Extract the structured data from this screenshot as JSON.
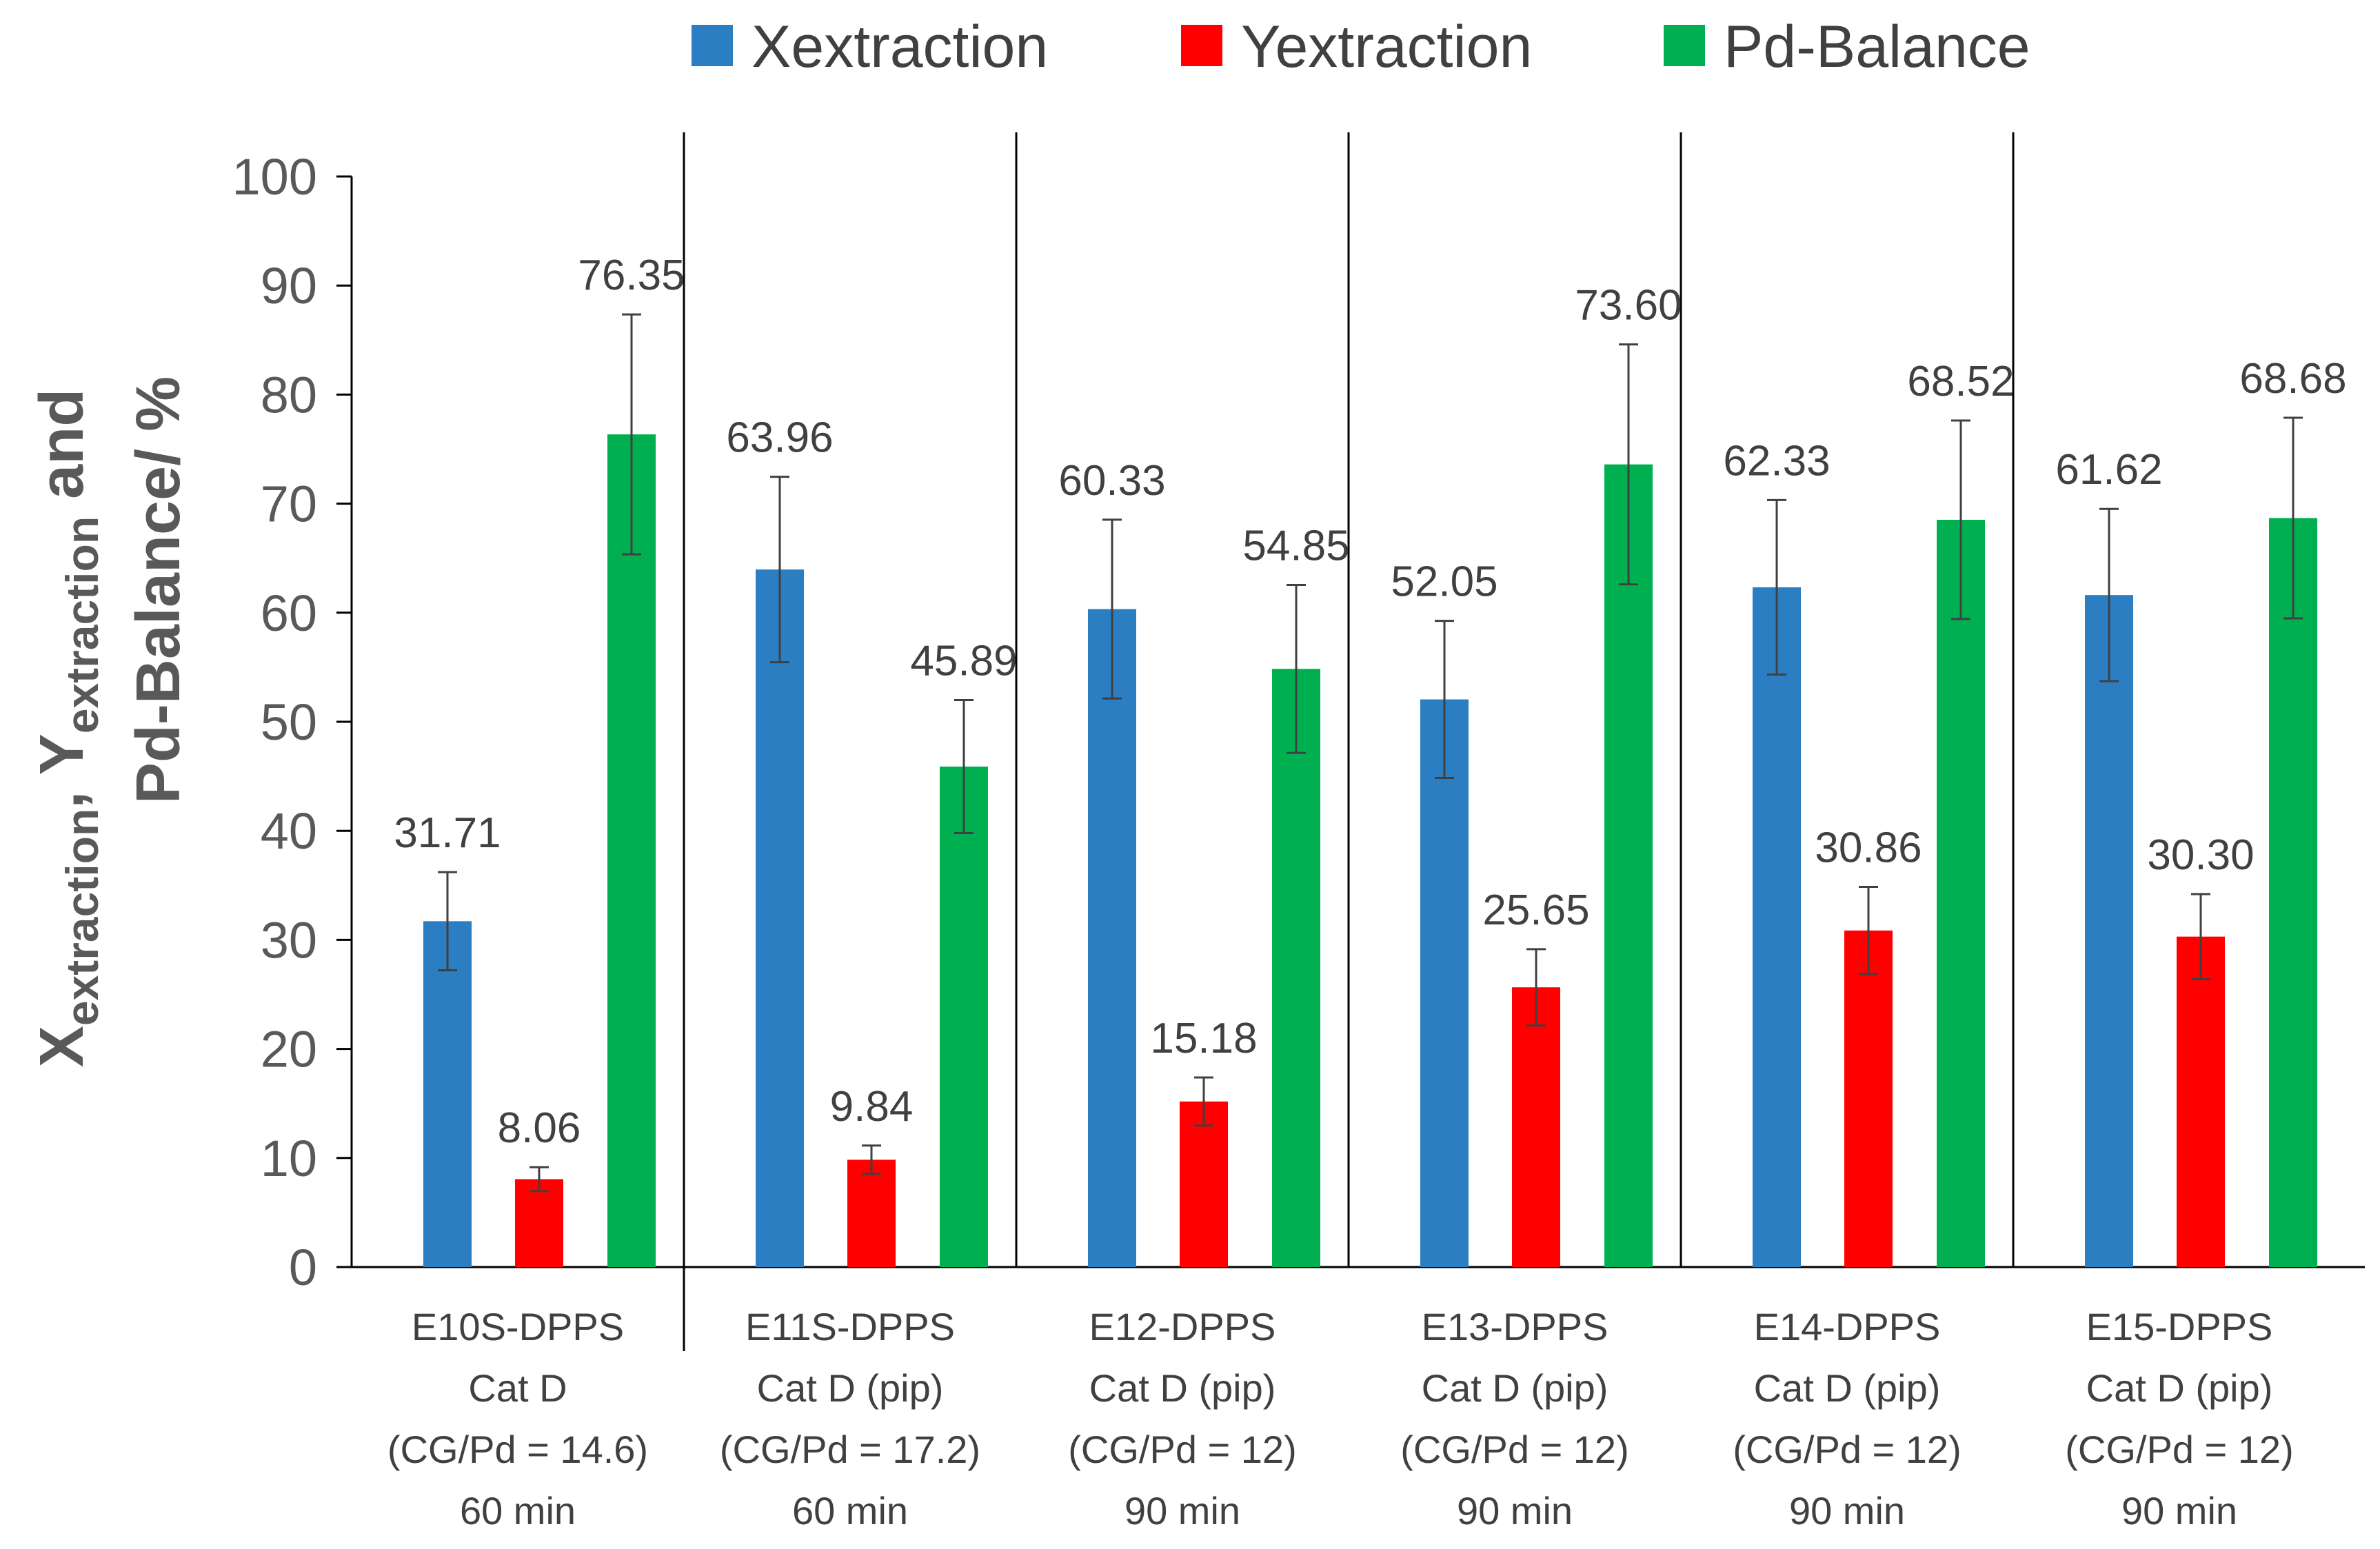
{
  "chart_data": {
    "type": "bar",
    "title": "",
    "xlabel": "",
    "ylabel": {
      "line1_parts": [
        {
          "text": "X",
          "sub": false
        },
        {
          "text": "extraction",
          "sub": true
        },
        {
          "text": ", Y",
          "sub": false
        },
        {
          "text": "extraction",
          "sub": true
        },
        {
          "text": " and",
          "sub": false
        }
      ],
      "line2": "Pd-Balance/ %"
    },
    "ylim": [
      0,
      100
    ],
    "yticks": [
      "0",
      "10",
      "20",
      "30",
      "40",
      "50",
      "60",
      "70",
      "80",
      "90",
      "100"
    ],
    "grid": false,
    "legend_position": "top",
    "categories": [
      {
        "lines": [
          "E10S-DPPS",
          "Cat D",
          "(CG/Pd = 14.6)",
          "60 min"
        ]
      },
      {
        "lines": [
          "E11S-DPPS",
          "Cat D (pip)",
          "(CG/Pd = 17.2)",
          "60 min"
        ]
      },
      {
        "lines": [
          "E12-DPPS",
          "Cat D (pip)",
          "(CG/Pd = 12)",
          "90 min"
        ]
      },
      {
        "lines": [
          "E13-DPPS",
          "Cat D (pip)",
          "(CG/Pd = 12)",
          "90 min"
        ]
      },
      {
        "lines": [
          "E14-DPPS",
          "Cat D (pip)",
          "(CG/Pd = 12)",
          "90 min"
        ]
      },
      {
        "lines": [
          "E15-DPPS",
          "Cat D (pip)",
          "(CG/Pd = 12)",
          "90 min"
        ]
      }
    ],
    "series": [
      {
        "name": "Xextraction",
        "color": "#2A7EC1",
        "values": [
          31.71,
          63.96,
          60.33,
          52.05,
          62.33,
          61.62
        ],
        "labels": [
          "31.71",
          "63.96",
          "60.33",
          "52.05",
          "62.33",
          "61.62"
        ],
        "errors": [
          4.5,
          8.5,
          8.2,
          7.2,
          8.0,
          7.9
        ]
      },
      {
        "name": "Yextraction",
        "color": "#FF0000",
        "values": [
          8.06,
          9.84,
          15.18,
          25.65,
          30.86,
          30.3
        ],
        "labels": [
          "8.06",
          "9.84",
          "15.18",
          "25.65",
          "30.86",
          "30.30"
        ],
        "errors": [
          1.1,
          1.3,
          2.2,
          3.5,
          4.0,
          3.9
        ]
      },
      {
        "name": "Pd-Balance",
        "color": "#00B050",
        "values": [
          76.35,
          45.89,
          54.85,
          73.6,
          68.52,
          68.68
        ],
        "labels": [
          "76.35",
          "45.89",
          "54.85",
          "73.60",
          "68.52",
          "68.68"
        ],
        "errors": [
          11.0,
          6.1,
          7.7,
          11.0,
          9.1,
          9.2
        ]
      }
    ]
  }
}
